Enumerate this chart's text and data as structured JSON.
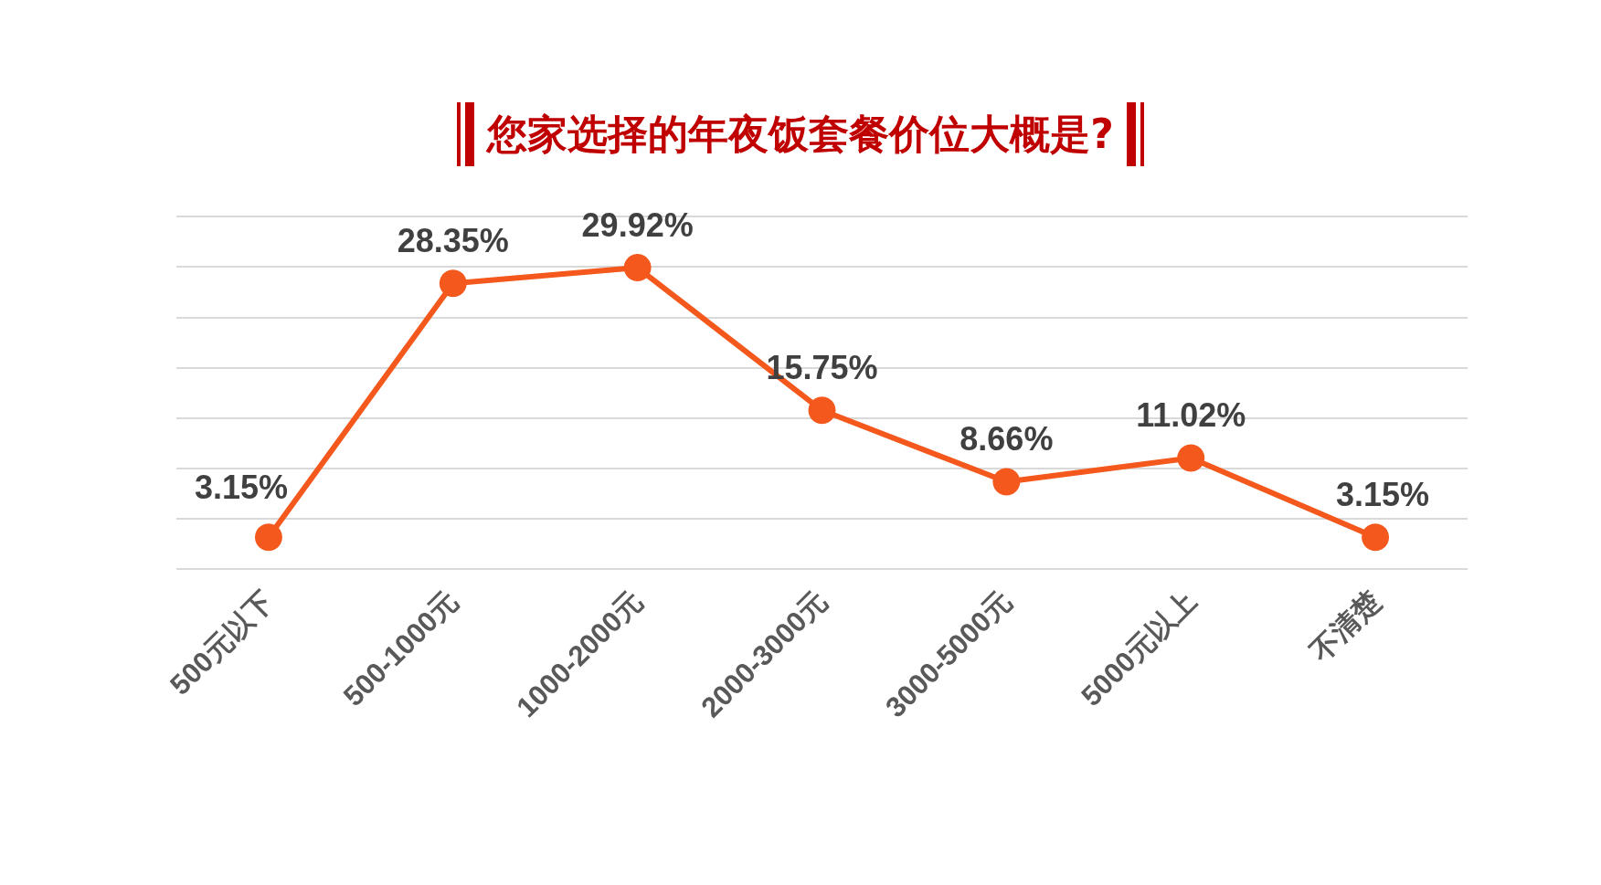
{
  "chart_data": {
    "type": "line",
    "title": "您家选择的年夜饭套餐价位大概是?",
    "categories": [
      "500元以下",
      "500-1000元",
      "1000-2000元",
      "2000-3000元",
      "3000-5000元",
      "5000元以上",
      "不清楚"
    ],
    "series": [
      {
        "color": "#f4581c",
        "values": [
          3.15,
          28.35,
          29.92,
          15.75,
          8.66,
          11.02,
          3.15
        ],
        "value_labels": [
          "3.15%",
          "28.35%",
          "29.92%",
          "15.75%",
          "8.66%",
          "11.02%",
          "3.15%"
        ]
      }
    ],
    "ylim": [
      0,
      35
    ],
    "yticks": [
      {
        "value": 0,
        "label": null
      },
      {
        "value": 5,
        "label": null
      },
      {
        "value": 10,
        "label": null
      },
      {
        "value": 15,
        "label": null
      },
      {
        "value": 20,
        "label": null
      },
      {
        "value": 25,
        "label": null
      },
      {
        "value": 30,
        "label": null
      },
      {
        "value": 35,
        "label": null
      }
    ],
    "tick_labels": "x",
    "grid": "y",
    "marker": "circle",
    "line_style": "solid"
  }
}
